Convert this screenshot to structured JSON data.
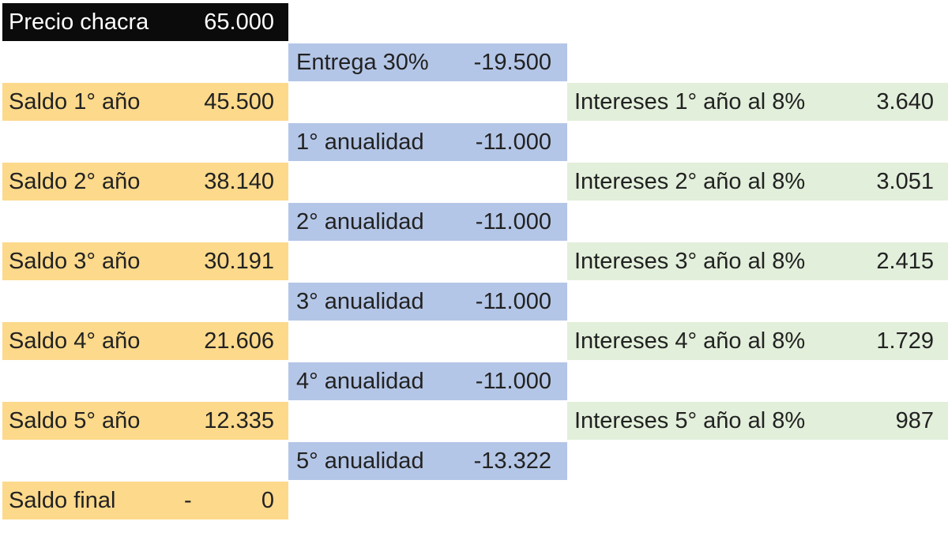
{
  "header": {
    "label": "Precio chacra",
    "value": "65.000"
  },
  "payments": [
    {
      "label": "Entrega 30%",
      "value": "-19.500"
    },
    {
      "label": "1° anualidad",
      "value": "-11.000"
    },
    {
      "label": "2° anualidad",
      "value": "-11.000"
    },
    {
      "label": "3° anualidad",
      "value": "-11.000"
    },
    {
      "label": "4° anualidad",
      "value": "-11.000"
    },
    {
      "label": "5° anualidad",
      "value": "-13.322"
    }
  ],
  "balances": [
    {
      "label": "Saldo 1° año",
      "value": "45.500"
    },
    {
      "label": "Saldo 2° año",
      "value": "38.140"
    },
    {
      "label": "Saldo 3° año",
      "value": "30.191"
    },
    {
      "label": "Saldo 4° año",
      "value": "21.606"
    },
    {
      "label": "Saldo 5° año",
      "value": "12.335"
    }
  ],
  "interest": [
    {
      "label": "Intereses 1° año al 8%",
      "value": "3.640"
    },
    {
      "label": "Intereses 2° año al 8%",
      "value": "3.051"
    },
    {
      "label": "Intereses 3° año al 8%",
      "value": "2.415"
    },
    {
      "label": "Intereses 4° año al 8%",
      "value": "1.729"
    },
    {
      "label": "Intereses 5° año al 8%",
      "value": "987"
    }
  ],
  "final": {
    "label": "Saldo final",
    "dash": "-",
    "value": "0"
  }
}
